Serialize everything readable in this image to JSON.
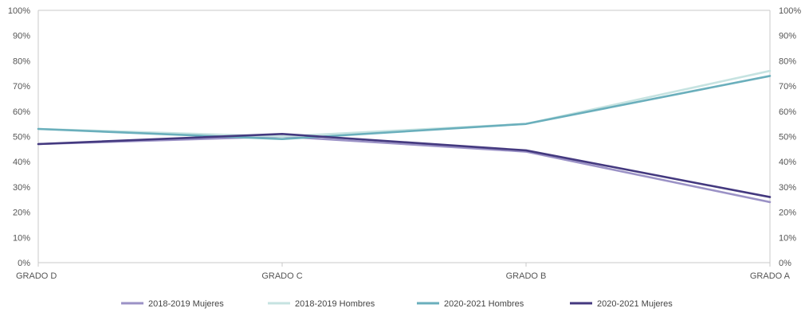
{
  "chart_data": {
    "type": "line",
    "categories": [
      "GRADO D",
      "GRADO C",
      "GRADO B",
      "GRADO A"
    ],
    "y_ticks": [
      "0%",
      "10%",
      "20%",
      "30%",
      "40%",
      "50%",
      "60%",
      "70%",
      "80%",
      "90%",
      "100%"
    ],
    "ylim": [
      0,
      100
    ],
    "grid": false,
    "legend_position": "bottom",
    "series": [
      {
        "name": "2018-2019 Mujeres",
        "color": "#9B92C6",
        "values": [
          47,
          50,
          44,
          24
        ]
      },
      {
        "name": "2018-2019 Hombres",
        "color": "#C6E3E1",
        "values": [
          53,
          50,
          55,
          76
        ]
      },
      {
        "name": "2020-2021 Hombres",
        "color": "#6AAFBC",
        "values": [
          53,
          49,
          55,
          74
        ]
      },
      {
        "name": "2020-2021 Mujeres",
        "color": "#44397F",
        "values": [
          47,
          51,
          44.5,
          26
        ]
      }
    ]
  }
}
